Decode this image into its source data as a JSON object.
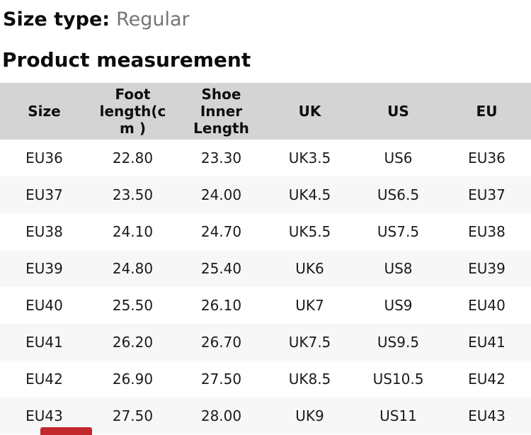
{
  "page": {
    "size_type_label": "Size type:",
    "size_type_value": "Regular",
    "section_title": "Product measurement"
  },
  "table": {
    "headers": [
      "Size",
      "Foot length(cm )",
      "Shoe Inner Length",
      "UK",
      "US",
      "EU"
    ],
    "rows": [
      [
        "EU36",
        "22.80",
        "23.30",
        "UK3.5",
        "US6",
        "EU36"
      ],
      [
        "EU37",
        "23.50",
        "24.00",
        "UK4.5",
        "US6.5",
        "EU37"
      ],
      [
        "EU38",
        "24.10",
        "24.70",
        "UK5.5",
        "US7.5",
        "EU38"
      ],
      [
        "EU39",
        "24.80",
        "25.40",
        "UK6",
        "US8",
        "EU39"
      ],
      [
        "EU40",
        "25.50",
        "26.10",
        "UK7",
        "US9",
        "EU40"
      ],
      [
        "EU41",
        "26.20",
        "26.70",
        "UK7.5",
        "US9.5",
        "EU41"
      ],
      [
        "EU42",
        "26.90",
        "27.50",
        "UK8.5",
        "US10.5",
        "EU42"
      ],
      [
        "EU43",
        "27.50",
        "28.00",
        "UK9",
        "US11",
        "EU43"
      ]
    ]
  },
  "colors": {
    "header_bg": "#d4d4d4",
    "zebra_bg": "#f7f7f7",
    "text": "#111111",
    "muted": "#757575",
    "accent_red": "#c2272d"
  }
}
